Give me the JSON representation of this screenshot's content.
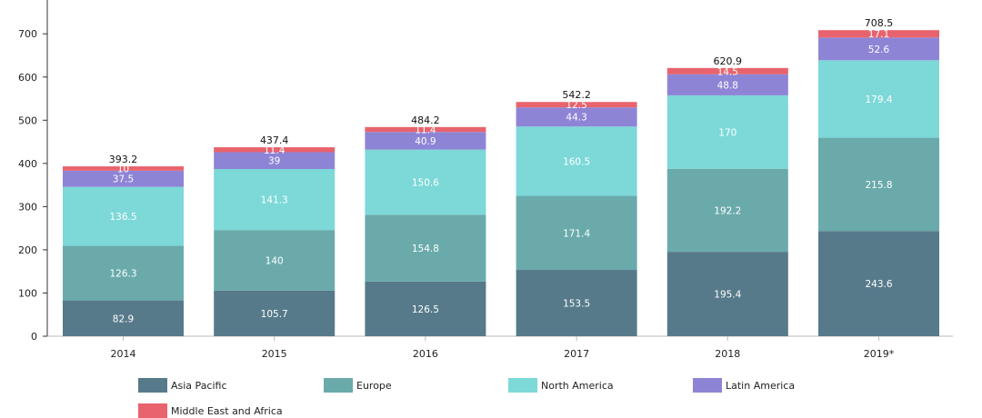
{
  "chart_data": {
    "type": "bar",
    "stacked": true,
    "categories": [
      "2014",
      "2015",
      "2016",
      "2017",
      "2018",
      "2019*"
    ],
    "series": [
      {
        "name": "Asia Pacific",
        "color": "#567a8a",
        "values": [
          82.9,
          105.7,
          126.5,
          153.5,
          195.4,
          243.6
        ]
      },
      {
        "name": "Europe",
        "color": "#6aaaab",
        "values": [
          126.3,
          140,
          154.8,
          171.4,
          192.2,
          215.8
        ]
      },
      {
        "name": "North America",
        "color": "#7dd8d8",
        "values": [
          136.5,
          141.3,
          150.6,
          160.5,
          170,
          179.4
        ]
      },
      {
        "name": "Latin America",
        "color": "#8e84d6",
        "values": [
          37.5,
          39,
          40.9,
          44.3,
          48.8,
          52.6
        ]
      },
      {
        "name": "Middle East and Africa",
        "color": "#e8636d",
        "values": [
          10,
          11.4,
          11.4,
          12.5,
          14.5,
          17.1
        ]
      }
    ],
    "totals": [
      393.2,
      437.4,
      484.2,
      542.2,
      620.9,
      708.5
    ],
    "y_ticks": [
      0,
      100,
      200,
      300,
      400,
      500,
      600,
      700
    ],
    "ylim": [
      0,
      760
    ],
    "grid": false,
    "legend_position": "bottom-left",
    "title": "",
    "xlabel": "",
    "ylabel": ""
  }
}
